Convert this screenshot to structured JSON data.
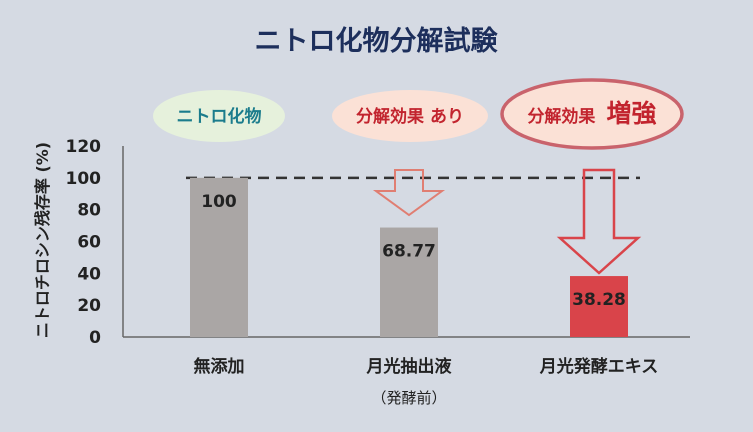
{
  "chart_data": {
    "type": "bar",
    "title": "ニトロ化物分解試験",
    "ylabel": "ニトロチロシン残存率 (%)",
    "ylim": [
      0,
      120
    ],
    "yticks": [
      0,
      20,
      40,
      60,
      80,
      100,
      120
    ],
    "categories": [
      "無添加",
      "月光抽出液",
      "月光発酵エキス"
    ],
    "category_notes": [
      "",
      "（発酵前）",
      ""
    ],
    "values": [
      100,
      68.77,
      38.28
    ],
    "value_labels": [
      "100",
      "68.77",
      "38.28"
    ],
    "reference_line": 100,
    "grid": false,
    "colors": {
      "bar_default": "#aaa6a5",
      "bar_highlight": "#d9444a",
      "arrow_outline": "#e07e72",
      "arrow_strong": "#d9444a",
      "title": "#1d2f5c",
      "badge_green": "#e6f1dc",
      "badge_pink": "#fbe1d6",
      "badge_red_border": "#c9636c",
      "badge_teal_text": "#1b7c8c",
      "badge_red_text": "#c2242e"
    }
  },
  "badges": [
    {
      "label": "ニトロ化物",
      "strong": ""
    },
    {
      "label": "分解効果 あり",
      "strong": ""
    },
    {
      "label": "分解効果",
      "strong": "増強"
    }
  ]
}
